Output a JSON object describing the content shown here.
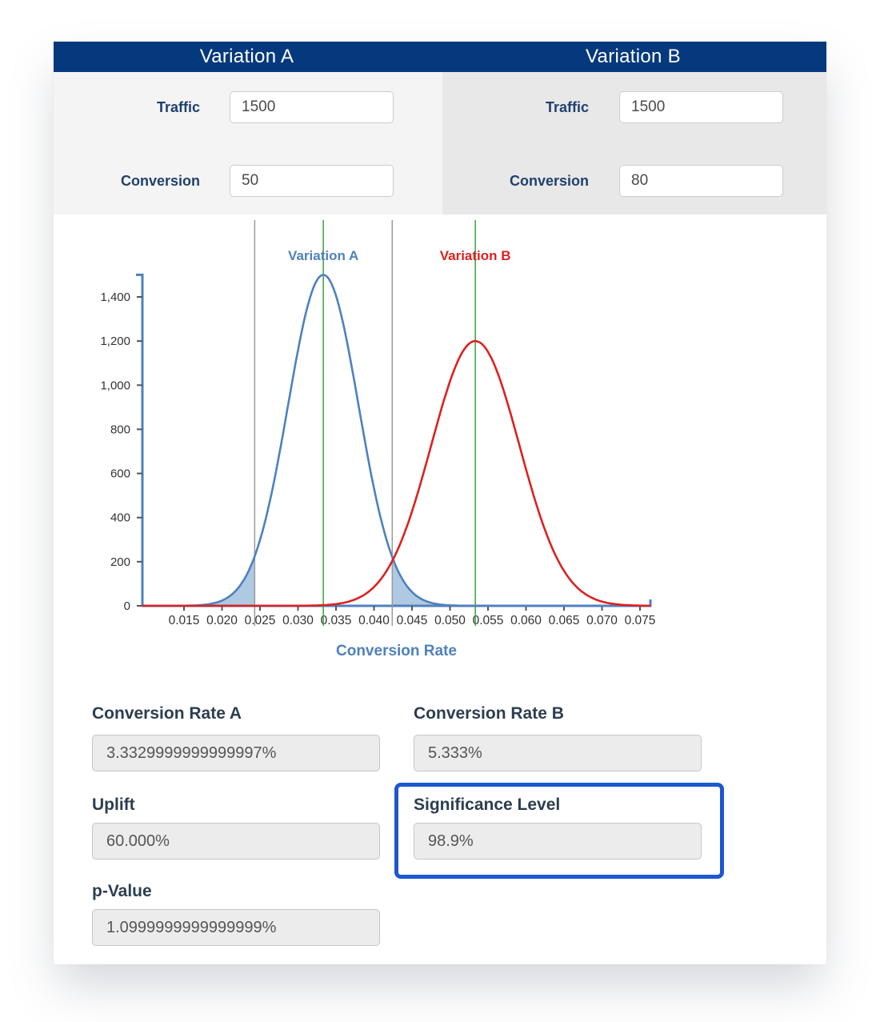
{
  "header": {
    "bg": "#05397d",
    "cells": [
      {
        "label": "Variation A"
      },
      {
        "label": "Variation B"
      }
    ]
  },
  "inputs": {
    "a": {
      "traffic_label": "Traffic",
      "traffic_value": "1500",
      "conversion_label": "Conversion",
      "conversion_value": "50"
    },
    "b": {
      "traffic_label": "Traffic",
      "traffic_value": "1500",
      "conversion_label": "Conversion",
      "conversion_value": "80"
    }
  },
  "results": {
    "conversion_rate_a": {
      "label": "Conversion Rate A",
      "value": "3.3329999999999997%"
    },
    "conversion_rate_b": {
      "label": "Conversion Rate B",
      "value": "5.333%"
    },
    "uplift": {
      "label": "Uplift",
      "value": "60.000%"
    },
    "significance": {
      "label": "Significance Level",
      "value": "98.9%",
      "highlight_color": "#1d57d2"
    },
    "p_value": {
      "label": "p-Value",
      "value": "1.0999999999999999%"
    }
  },
  "chart_data": {
    "type": "area",
    "title": "",
    "xlabel": "Conversion Rate",
    "ylabel": "",
    "xlabel_color": "#4f81bd",
    "axis_color": "#4f81bd",
    "tick_color": "#555555",
    "tick_label_color": "#333333",
    "grid": false,
    "legend_position": "above-curves",
    "xlim": [
      0.0095,
      0.0764
    ],
    "ylim": [
      0,
      1500
    ],
    "x_ticks": [
      {
        "v": 0.015,
        "label": "0.015"
      },
      {
        "v": 0.02,
        "label": "0.020"
      },
      {
        "v": 0.025,
        "label": "0.025"
      },
      {
        "v": 0.03,
        "label": "0.030"
      },
      {
        "v": 0.035,
        "label": "0.035"
      },
      {
        "v": 0.04,
        "label": "0.040"
      },
      {
        "v": 0.045,
        "label": "0.045"
      },
      {
        "v": 0.05,
        "label": "0.050"
      },
      {
        "v": 0.055,
        "label": "0.055"
      },
      {
        "v": 0.06,
        "label": "0.060"
      },
      {
        "v": 0.065,
        "label": "0.065"
      },
      {
        "v": 0.07,
        "label": "0.070"
      },
      {
        "v": 0.075,
        "label": "0.075"
      }
    ],
    "y_ticks": [
      {
        "v": 0,
        "label": "0"
      },
      {
        "v": 200,
        "label": "200"
      },
      {
        "v": 400,
        "label": "400"
      },
      {
        "v": 600,
        "label": "600"
      },
      {
        "v": 800,
        "label": "800"
      },
      {
        "v": 1000,
        "label": "1,000"
      },
      {
        "v": 1200,
        "label": "1,200"
      },
      {
        "v": 1400,
        "label": "1,400"
      }
    ],
    "series": [
      {
        "name": "Variation A",
        "color": "#4f81bd",
        "fill": "#b0c9e2",
        "mean": 0.03333,
        "sd": 0.004634,
        "peak": 1500,
        "shade_below": 0.0243,
        "shade_above": 0.0424
      },
      {
        "name": "Variation B",
        "color": "#dc2121",
        "mean": 0.05333,
        "sd": 0.0058,
        "peak": 1200
      }
    ],
    "mean_lines": {
      "color": "#3aa23a",
      "x": [
        0.03333,
        0.05333
      ]
    },
    "ci_lines": {
      "color": "#9a9a9a",
      "x": [
        0.0243,
        0.0424
      ]
    }
  }
}
